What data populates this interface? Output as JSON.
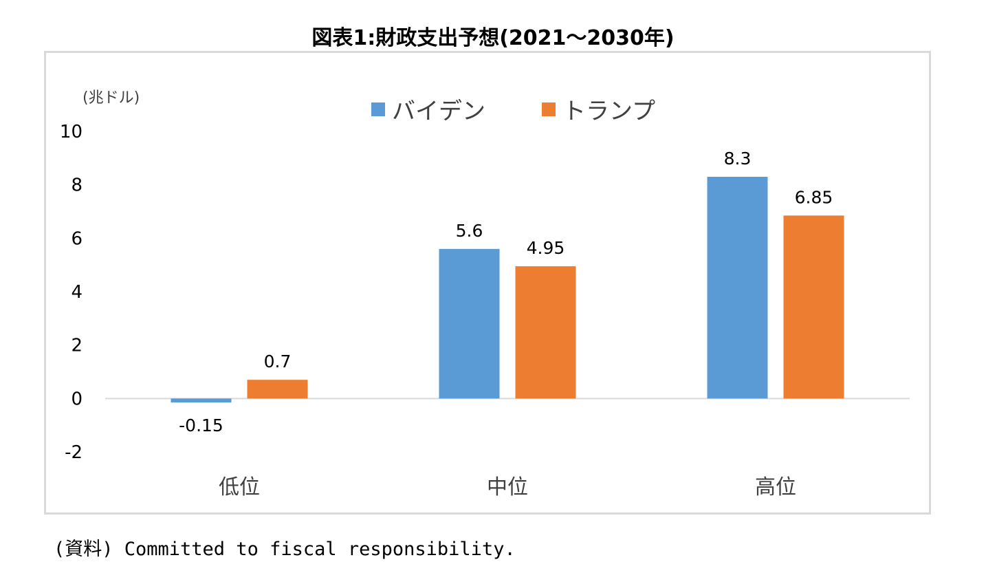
{
  "title": "図表1:財政支出予想(2021〜2030年)",
  "source": "(資料) Committed to fiscal responsibility.",
  "chart_data": {
    "type": "bar",
    "unit_label": "(兆ドル)",
    "categories": [
      "低位",
      "中位",
      "高位"
    ],
    "series": [
      {
        "name": "バイデン",
        "color": "#5b9bd5",
        "values": [
          -0.15,
          5.6,
          8.3
        ],
        "labels": [
          "-0.15",
          "5.6",
          "8.3"
        ]
      },
      {
        "name": "トランプ",
        "color": "#ed7d31",
        "values": [
          0.7,
          4.95,
          6.85
        ],
        "labels": [
          "0.7",
          "4.95",
          "6.85"
        ]
      }
    ],
    "ylim": [
      -2,
      10
    ],
    "yticks": [
      "-2",
      "0",
      "2",
      "4",
      "6",
      "8",
      "10"
    ],
    "grid": false,
    "legend": "top"
  }
}
